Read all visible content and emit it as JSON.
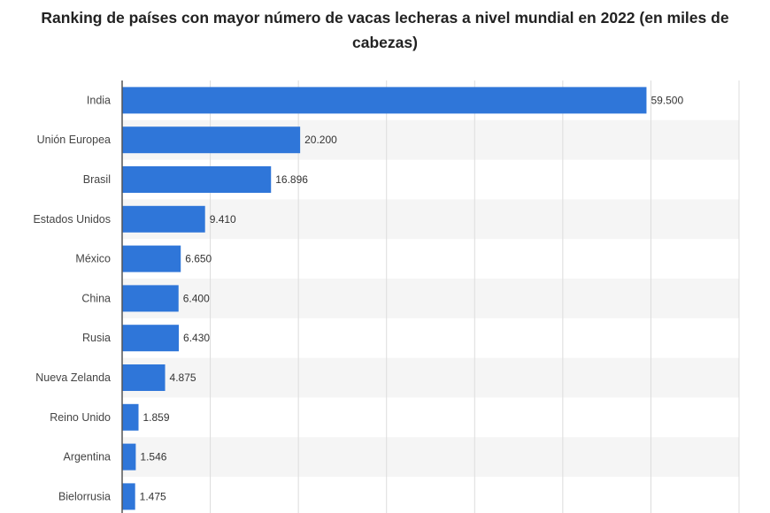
{
  "chart_data": {
    "type": "bar",
    "orientation": "horizontal",
    "title": "Ranking de países con mayor número de vacas lecheras a nivel mundial en 2022 (en miles de cabezas)",
    "categories": [
      "India",
      "Unión Europea",
      "Brasil",
      "Estados Unidos",
      "México",
      "China",
      "Rusia",
      "Nueva Zelanda",
      "Reino Unido",
      "Argentina",
      "Bielorrusia"
    ],
    "values": [
      59500,
      20200,
      16896,
      9410,
      6650,
      6400,
      6430,
      4875,
      1859,
      1546,
      1475
    ],
    "value_labels": [
      "59.500",
      "20.200",
      "16.896",
      "9.410",
      "6.650",
      "6.400",
      "6.430",
      "4.875",
      "1.859",
      "1.546",
      "1.475"
    ],
    "xlim": [
      0,
      70000
    ],
    "grid": true,
    "colors": {
      "bar": "#2f76d9",
      "band": "#f5f5f5",
      "grid": "#dcdcdc",
      "axis": "#555555"
    }
  }
}
